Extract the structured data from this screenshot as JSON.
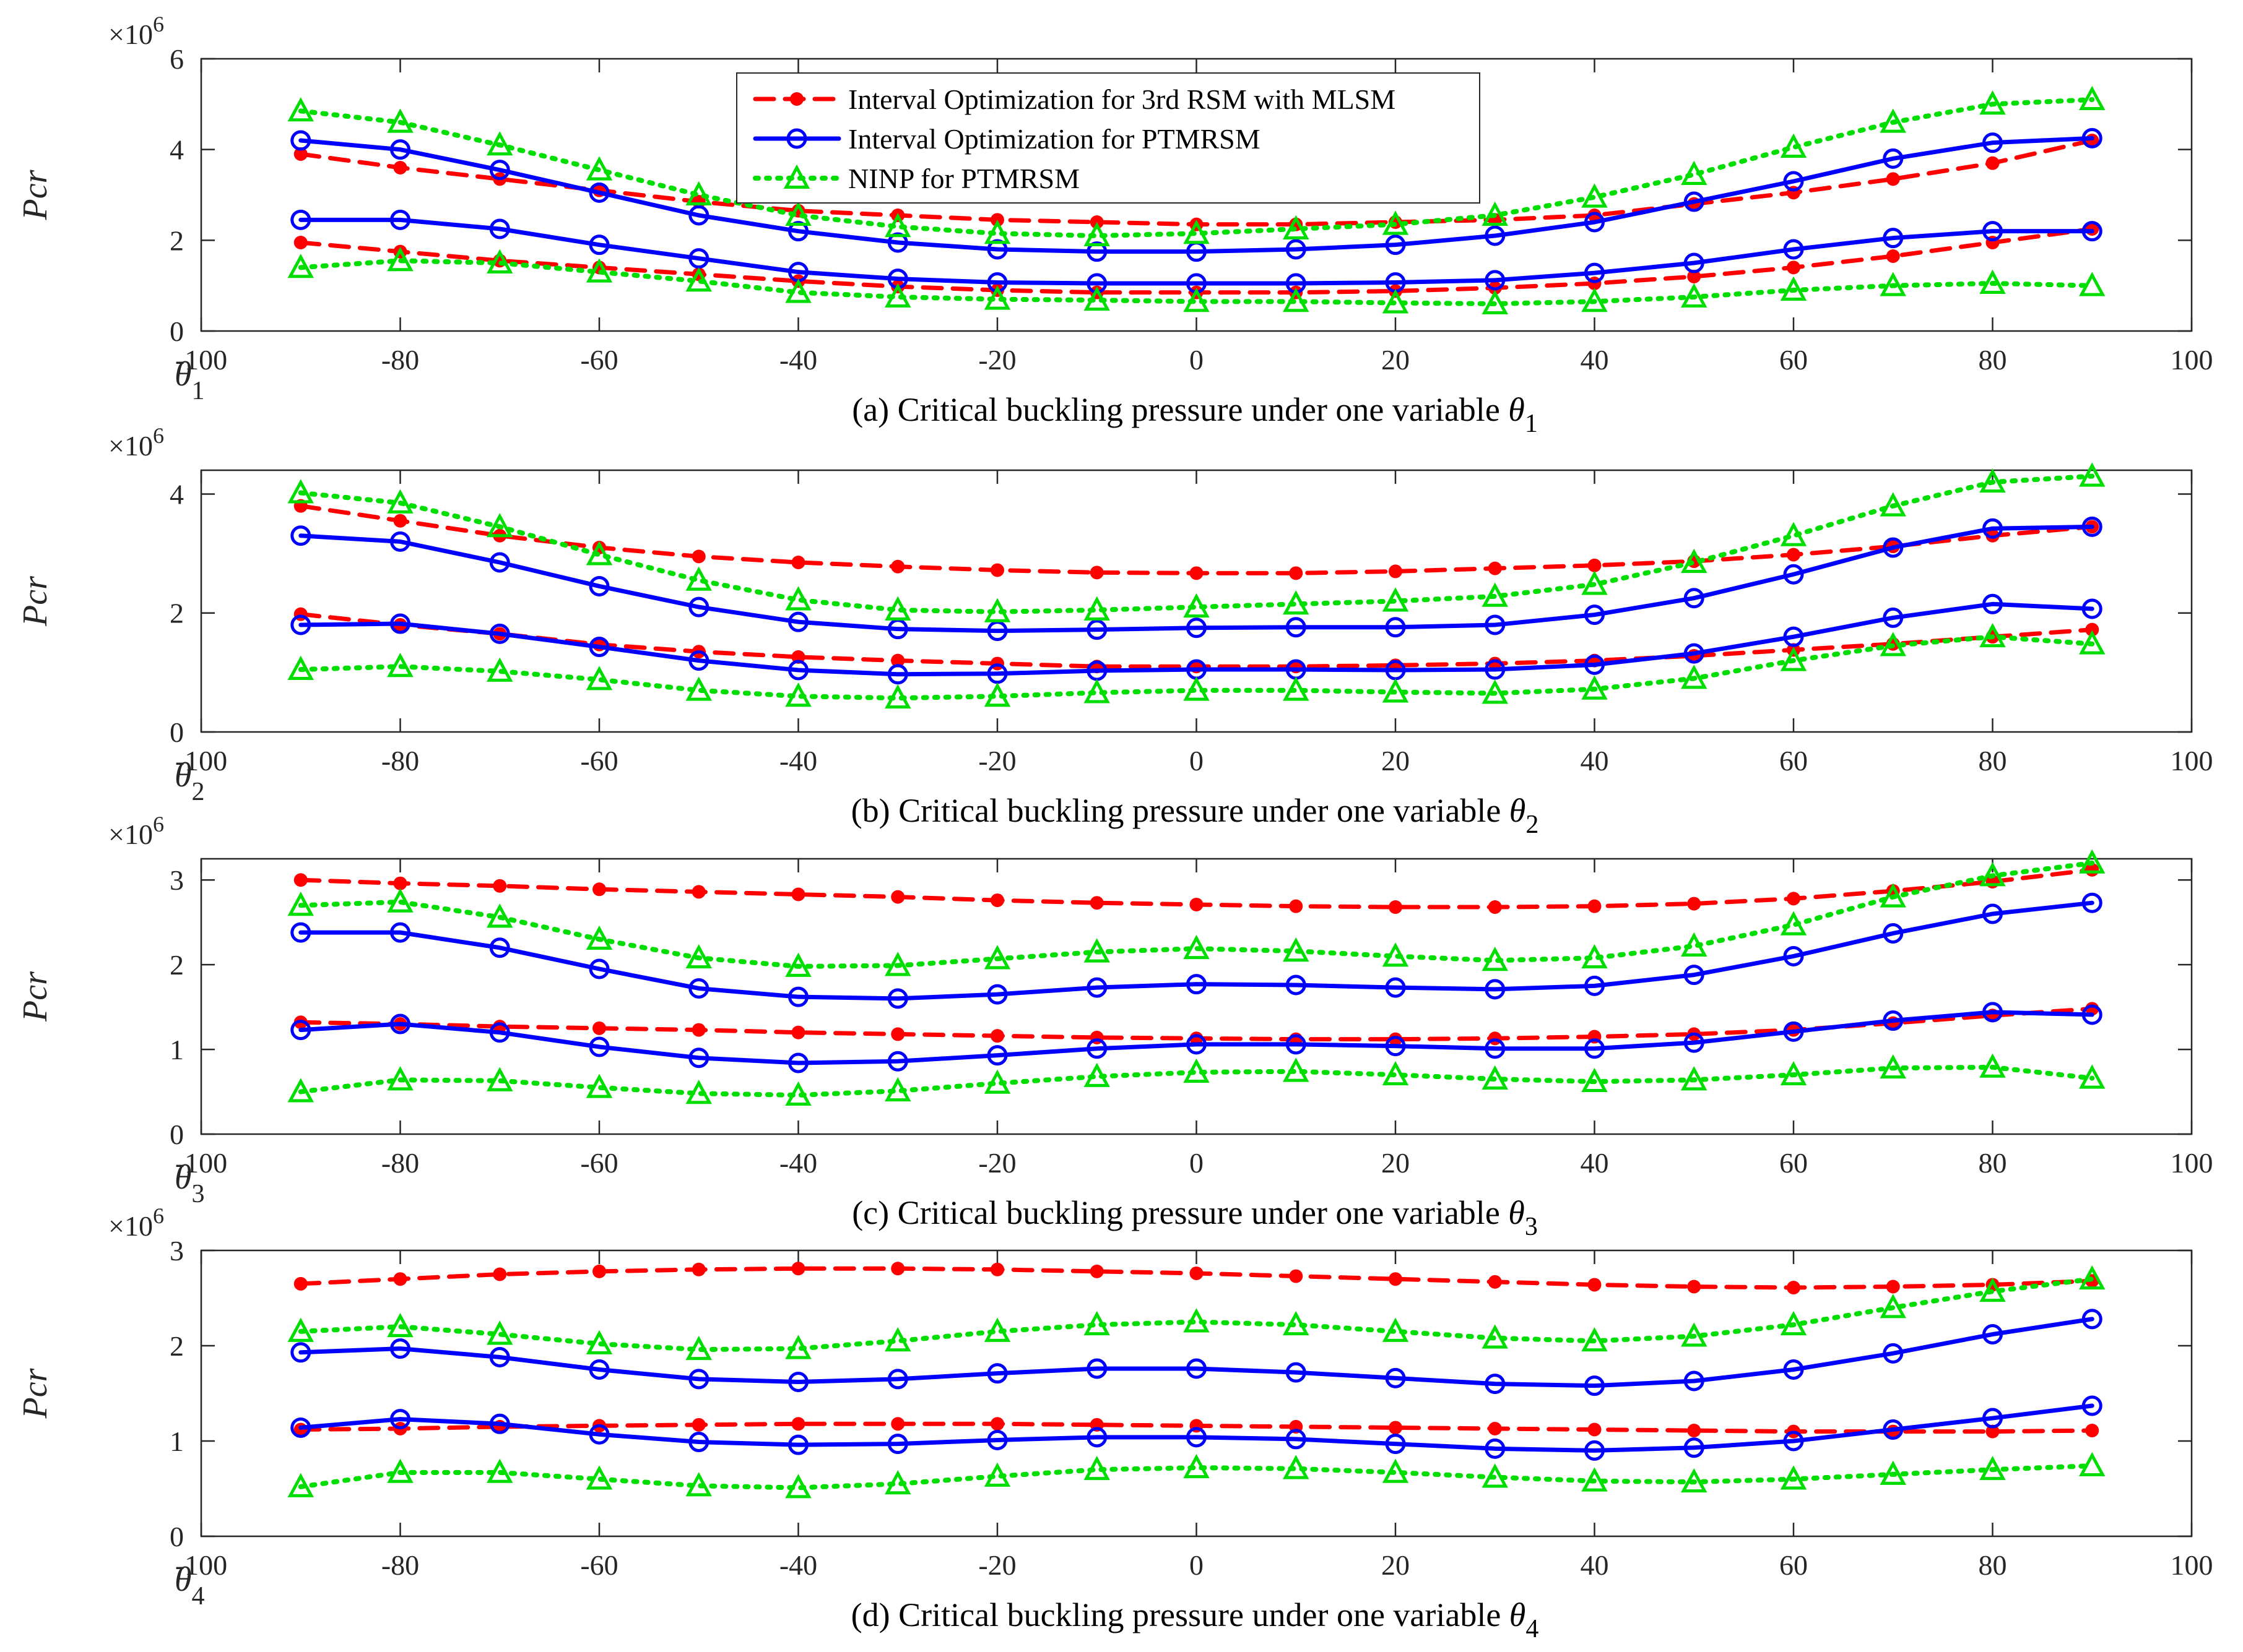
{
  "legend": [
    {
      "label": "Interval Optimization for 3rd RSM with MLSM",
      "color": "#ff0000",
      "style": "dashed",
      "marker": "dot"
    },
    {
      "label": "Interval Optimization for PTMRSM",
      "color": "#0000ff",
      "style": "solid",
      "marker": "circle"
    },
    {
      "label": "NINP for PTMRSM",
      "color": "#00dd00",
      "style": "dotted",
      "marker": "triangle"
    }
  ],
  "chart_data": [
    {
      "type": "line",
      "caption": "(a) Critical buckling pressure under one variable",
      "caption_symbol": "θ",
      "caption_subscript": "1",
      "ylabel": "Pcr",
      "exponent_base": "×10",
      "exponent_power": "6",
      "axis_symbol": "θ",
      "axis_subscript": "1",
      "xlim": [
        -100,
        100
      ],
      "ylim": [
        0,
        6
      ],
      "xticks": [
        "-100",
        "-80",
        "-60",
        "-40",
        "-20",
        "0",
        "20",
        "40",
        "60",
        "80",
        "100"
      ],
      "yticks": [
        "0",
        "2",
        "4",
        "6"
      ],
      "x": [
        -90,
        -80,
        -70,
        -60,
        -50,
        -40,
        -30,
        -20,
        -10,
        0,
        10,
        20,
        30,
        40,
        50,
        60,
        70,
        80,
        90
      ],
      "series": [
        {
          "color": "#ff0000",
          "style": "dashed",
          "marker": "dot",
          "values": [
            3.9,
            3.6,
            3.35,
            3.1,
            2.85,
            2.65,
            2.55,
            2.45,
            2.4,
            2.35,
            2.35,
            2.4,
            2.45,
            2.55,
            2.8,
            3.05,
            3.35,
            3.7,
            4.2
          ]
        },
        {
          "color": "#ff0000",
          "style": "dashed",
          "marker": "dot",
          "values": [
            1.95,
            1.75,
            1.55,
            1.4,
            1.25,
            1.1,
            0.98,
            0.9,
            0.85,
            0.85,
            0.85,
            0.88,
            0.95,
            1.05,
            1.2,
            1.4,
            1.65,
            1.95,
            2.25
          ]
        },
        {
          "color": "#0000ff",
          "style": "solid",
          "marker": "circle",
          "values": [
            4.2,
            4.0,
            3.55,
            3.05,
            2.55,
            2.2,
            1.95,
            1.8,
            1.75,
            1.75,
            1.8,
            1.9,
            2.1,
            2.4,
            2.85,
            3.3,
            3.8,
            4.15,
            4.25
          ]
        },
        {
          "color": "#0000ff",
          "style": "solid",
          "marker": "circle",
          "values": [
            2.45,
            2.45,
            2.25,
            1.9,
            1.6,
            1.3,
            1.15,
            1.07,
            1.05,
            1.05,
            1.05,
            1.07,
            1.12,
            1.28,
            1.5,
            1.8,
            2.05,
            2.2,
            2.2
          ]
        },
        {
          "color": "#00dd00",
          "style": "dotted",
          "marker": "triangle",
          "values": [
            4.85,
            4.6,
            4.1,
            3.55,
            3.0,
            2.55,
            2.3,
            2.15,
            2.1,
            2.15,
            2.25,
            2.35,
            2.55,
            2.95,
            3.45,
            4.05,
            4.6,
            5.0,
            5.1
          ]
        },
        {
          "color": "#00dd00",
          "style": "dotted",
          "marker": "triangle",
          "values": [
            1.4,
            1.55,
            1.5,
            1.3,
            1.1,
            0.85,
            0.75,
            0.7,
            0.68,
            0.65,
            0.65,
            0.62,
            0.6,
            0.65,
            0.75,
            0.9,
            1.0,
            1.05,
            1.0
          ]
        }
      ]
    },
    {
      "type": "line",
      "caption": "(b) Critical buckling pressure under one variable",
      "caption_symbol": "θ",
      "caption_subscript": "2",
      "ylabel": "Pcr",
      "exponent_base": "×10",
      "exponent_power": "6",
      "axis_symbol": "θ",
      "axis_subscript": "2",
      "xlim": [
        -100,
        100
      ],
      "ylim": [
        0,
        4.4
      ],
      "xticks": [
        "-100",
        "-80",
        "-60",
        "-40",
        "-20",
        "0",
        "20",
        "40",
        "60",
        "80",
        "100"
      ],
      "yticks": [
        "0",
        "2",
        "4"
      ],
      "x": [
        -90,
        -80,
        -70,
        -60,
        -50,
        -40,
        -30,
        -20,
        -10,
        0,
        10,
        20,
        30,
        40,
        50,
        60,
        70,
        80,
        90
      ],
      "series": [
        {
          "color": "#ff0000",
          "style": "dashed",
          "marker": "dot",
          "values": [
            3.8,
            3.55,
            3.3,
            3.1,
            2.95,
            2.85,
            2.78,
            2.72,
            2.68,
            2.67,
            2.67,
            2.7,
            2.75,
            2.8,
            2.87,
            2.98,
            3.12,
            3.3,
            3.45
          ]
        },
        {
          "color": "#ff0000",
          "style": "dashed",
          "marker": "dot",
          "values": [
            1.98,
            1.8,
            1.65,
            1.47,
            1.35,
            1.26,
            1.2,
            1.15,
            1.1,
            1.1,
            1.1,
            1.12,
            1.15,
            1.2,
            1.28,
            1.38,
            1.48,
            1.6,
            1.72
          ]
        },
        {
          "color": "#0000ff",
          "style": "solid",
          "marker": "circle",
          "values": [
            3.3,
            3.2,
            2.85,
            2.45,
            2.1,
            1.85,
            1.73,
            1.7,
            1.72,
            1.75,
            1.76,
            1.76,
            1.8,
            1.97,
            2.25,
            2.65,
            3.1,
            3.42,
            3.45
          ]
        },
        {
          "color": "#0000ff",
          "style": "solid",
          "marker": "circle",
          "values": [
            1.8,
            1.82,
            1.65,
            1.43,
            1.2,
            1.04,
            0.97,
            0.98,
            1.03,
            1.05,
            1.05,
            1.04,
            1.05,
            1.13,
            1.32,
            1.6,
            1.92,
            2.15,
            2.07
          ]
        },
        {
          "color": "#00dd00",
          "style": "dotted",
          "marker": "triangle",
          "values": [
            4.02,
            3.85,
            3.45,
            2.98,
            2.55,
            2.22,
            2.05,
            2.02,
            2.05,
            2.1,
            2.15,
            2.2,
            2.28,
            2.48,
            2.85,
            3.3,
            3.8,
            4.2,
            4.3
          ]
        },
        {
          "color": "#00dd00",
          "style": "dotted",
          "marker": "triangle",
          "values": [
            1.05,
            1.1,
            1.02,
            0.88,
            0.7,
            0.6,
            0.57,
            0.6,
            0.66,
            0.7,
            0.7,
            0.67,
            0.65,
            0.72,
            0.9,
            1.2,
            1.45,
            1.6,
            1.48
          ]
        }
      ]
    },
    {
      "type": "line",
      "caption": "(c) Critical buckling pressure under one variable",
      "caption_symbol": "θ",
      "caption_subscript": "3",
      "ylabel": "Pcr",
      "exponent_base": "×10",
      "exponent_power": "6",
      "axis_symbol": "θ",
      "axis_subscript": "3",
      "xlim": [
        -100,
        100
      ],
      "ylim": [
        0,
        3.25
      ],
      "xticks": [
        "-100",
        "-80",
        "-60",
        "-40",
        "-20",
        "0",
        "20",
        "40",
        "60",
        "80",
        "100"
      ],
      "yticks": [
        "0",
        "1",
        "2",
        "3"
      ],
      "x": [
        -90,
        -80,
        -70,
        -60,
        -50,
        -40,
        -30,
        -20,
        -10,
        0,
        10,
        20,
        30,
        40,
        50,
        60,
        70,
        80,
        90
      ],
      "series": [
        {
          "color": "#ff0000",
          "style": "dashed",
          "marker": "dot",
          "values": [
            3.0,
            2.96,
            2.93,
            2.89,
            2.86,
            2.83,
            2.8,
            2.76,
            2.73,
            2.71,
            2.69,
            2.68,
            2.68,
            2.69,
            2.72,
            2.78,
            2.87,
            2.98,
            3.12
          ]
        },
        {
          "color": "#ff0000",
          "style": "dashed",
          "marker": "dot",
          "values": [
            1.32,
            1.3,
            1.27,
            1.25,
            1.23,
            1.2,
            1.18,
            1.16,
            1.14,
            1.13,
            1.12,
            1.12,
            1.13,
            1.15,
            1.18,
            1.23,
            1.31,
            1.4,
            1.48
          ]
        },
        {
          "color": "#0000ff",
          "style": "solid",
          "marker": "circle",
          "values": [
            2.38,
            2.38,
            2.2,
            1.95,
            1.72,
            1.62,
            1.6,
            1.65,
            1.73,
            1.77,
            1.76,
            1.73,
            1.71,
            1.75,
            1.88,
            2.1,
            2.37,
            2.6,
            2.73
          ]
        },
        {
          "color": "#0000ff",
          "style": "solid",
          "marker": "circle",
          "values": [
            1.23,
            1.3,
            1.2,
            1.03,
            0.9,
            0.84,
            0.86,
            0.93,
            1.01,
            1.06,
            1.06,
            1.04,
            1.01,
            1.01,
            1.08,
            1.21,
            1.34,
            1.44,
            1.41
          ]
        },
        {
          "color": "#00dd00",
          "style": "dotted",
          "marker": "triangle",
          "values": [
            2.7,
            2.74,
            2.56,
            2.3,
            2.08,
            1.98,
            1.99,
            2.07,
            2.15,
            2.19,
            2.16,
            2.1,
            2.05,
            2.08,
            2.22,
            2.47,
            2.8,
            3.05,
            3.2
          ]
        },
        {
          "color": "#00dd00",
          "style": "dotted",
          "marker": "triangle",
          "values": [
            0.5,
            0.64,
            0.63,
            0.55,
            0.48,
            0.46,
            0.51,
            0.6,
            0.68,
            0.73,
            0.74,
            0.7,
            0.65,
            0.62,
            0.64,
            0.7,
            0.78,
            0.79,
            0.66
          ]
        }
      ]
    },
    {
      "type": "line",
      "caption": "(d) Critical buckling pressure under one variable",
      "caption_symbol": "θ",
      "caption_subscript": "4",
      "ylabel": "Pcr",
      "exponent_base": "×10",
      "exponent_power": "6",
      "axis_symbol": "θ",
      "axis_subscript": "4",
      "xlim": [
        -100,
        100
      ],
      "ylim": [
        0,
        3
      ],
      "xticks": [
        "-100",
        "-80",
        "-60",
        "-40",
        "-20",
        "0",
        "20",
        "40",
        "60",
        "80",
        "100"
      ],
      "yticks": [
        "0",
        "1",
        "2",
        "3"
      ],
      "x": [
        -90,
        -80,
        -70,
        -60,
        -50,
        -40,
        -30,
        -20,
        -10,
        0,
        10,
        20,
        30,
        40,
        50,
        60,
        70,
        80,
        90
      ],
      "series": [
        {
          "color": "#ff0000",
          "style": "dashed",
          "marker": "dot",
          "values": [
            2.65,
            2.7,
            2.75,
            2.78,
            2.8,
            2.81,
            2.81,
            2.8,
            2.78,
            2.76,
            2.73,
            2.7,
            2.67,
            2.64,
            2.62,
            2.61,
            2.62,
            2.64,
            2.68
          ]
        },
        {
          "color": "#ff0000",
          "style": "dashed",
          "marker": "dot",
          "values": [
            1.12,
            1.13,
            1.15,
            1.16,
            1.17,
            1.18,
            1.18,
            1.18,
            1.17,
            1.16,
            1.15,
            1.14,
            1.13,
            1.12,
            1.11,
            1.1,
            1.1,
            1.1,
            1.11
          ]
        },
        {
          "color": "#0000ff",
          "style": "solid",
          "marker": "circle",
          "values": [
            1.93,
            1.97,
            1.88,
            1.75,
            1.65,
            1.62,
            1.65,
            1.71,
            1.76,
            1.76,
            1.72,
            1.66,
            1.6,
            1.58,
            1.63,
            1.75,
            1.92,
            2.12,
            2.28
          ]
        },
        {
          "color": "#0000ff",
          "style": "solid",
          "marker": "circle",
          "values": [
            1.14,
            1.23,
            1.18,
            1.07,
            0.99,
            0.96,
            0.97,
            1.01,
            1.04,
            1.04,
            1.02,
            0.97,
            0.92,
            0.9,
            0.93,
            1.0,
            1.12,
            1.24,
            1.37
          ]
        },
        {
          "color": "#00dd00",
          "style": "dotted",
          "marker": "triangle",
          "values": [
            2.15,
            2.2,
            2.12,
            2.02,
            1.96,
            1.97,
            2.05,
            2.15,
            2.22,
            2.25,
            2.22,
            2.15,
            2.08,
            2.05,
            2.1,
            2.22,
            2.4,
            2.57,
            2.7
          ]
        },
        {
          "color": "#00dd00",
          "style": "dotted",
          "marker": "triangle",
          "values": [
            0.52,
            0.67,
            0.67,
            0.6,
            0.53,
            0.51,
            0.55,
            0.63,
            0.7,
            0.72,
            0.71,
            0.67,
            0.62,
            0.58,
            0.57,
            0.6,
            0.65,
            0.7,
            0.74
          ]
        }
      ]
    }
  ]
}
